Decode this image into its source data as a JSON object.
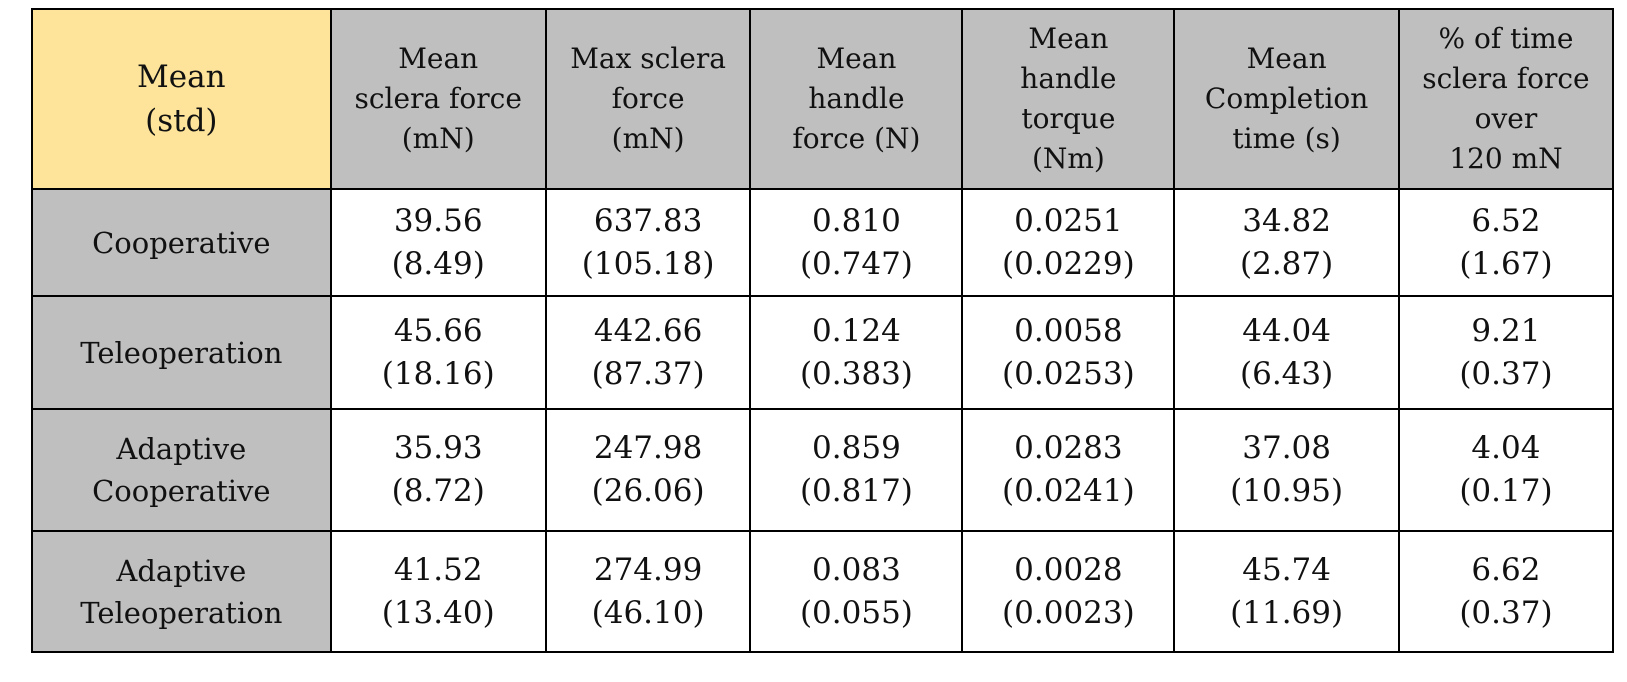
{
  "table": {
    "corner": [
      "Mean",
      "(std)"
    ],
    "columns": [
      [
        "Mean",
        "sclera force",
        "(mN)"
      ],
      [
        "Max sclera",
        "force",
        "(mN)"
      ],
      [
        "Mean",
        "handle",
        "force (N)"
      ],
      [
        "Mean",
        "handle",
        "torque",
        "(Nm)"
      ],
      [
        "Mean",
        "Completion",
        "time (s)"
      ],
      [
        "% of time",
        "sclera force",
        "over",
        "120 mN"
      ]
    ],
    "rows": [
      {
        "label": [
          "Cooperative"
        ],
        "cells": [
          [
            "39.56",
            "(8.49)"
          ],
          [
            "637.83",
            "(105.18)"
          ],
          [
            "0.810",
            "(0.747)"
          ],
          [
            "0.0251",
            "(0.0229)"
          ],
          [
            "34.82",
            "(2.87)"
          ],
          [
            "6.52",
            "(1.67)"
          ]
        ]
      },
      {
        "label": [
          "Teleoperation"
        ],
        "cells": [
          [
            "45.66",
            "(18.16)"
          ],
          [
            "442.66",
            "(87.37)"
          ],
          [
            "0.124",
            "(0.383)"
          ],
          [
            "0.0058",
            "(0.0253)"
          ],
          [
            "44.04",
            "(6.43)"
          ],
          [
            "9.21",
            "(0.37)"
          ]
        ]
      },
      {
        "label": [
          "Adaptive",
          "Cooperative"
        ],
        "cells": [
          [
            "35.93",
            "(8.72)"
          ],
          [
            "247.98",
            "(26.06)"
          ],
          [
            "0.859",
            "(0.817)"
          ],
          [
            "0.0283",
            "(0.0241)"
          ],
          [
            "37.08",
            "(10.95)"
          ],
          [
            "4.04",
            "(0.17)"
          ]
        ]
      },
      {
        "label": [
          "Adaptive",
          "Teleoperation"
        ],
        "cells": [
          [
            "41.52",
            "(13.40)"
          ],
          [
            "274.99",
            "(46.10)"
          ],
          [
            "0.083",
            "(0.055)"
          ],
          [
            "0.0028",
            "(0.0023)"
          ],
          [
            "45.74",
            "(11.69)"
          ],
          [
            "6.62",
            "(0.37)"
          ]
        ]
      }
    ],
    "colors": {
      "corner_fill": "#fde49a",
      "header_fill": "#bfbfbf",
      "cell_fill": "#ffffff",
      "border": "#000000"
    }
  }
}
